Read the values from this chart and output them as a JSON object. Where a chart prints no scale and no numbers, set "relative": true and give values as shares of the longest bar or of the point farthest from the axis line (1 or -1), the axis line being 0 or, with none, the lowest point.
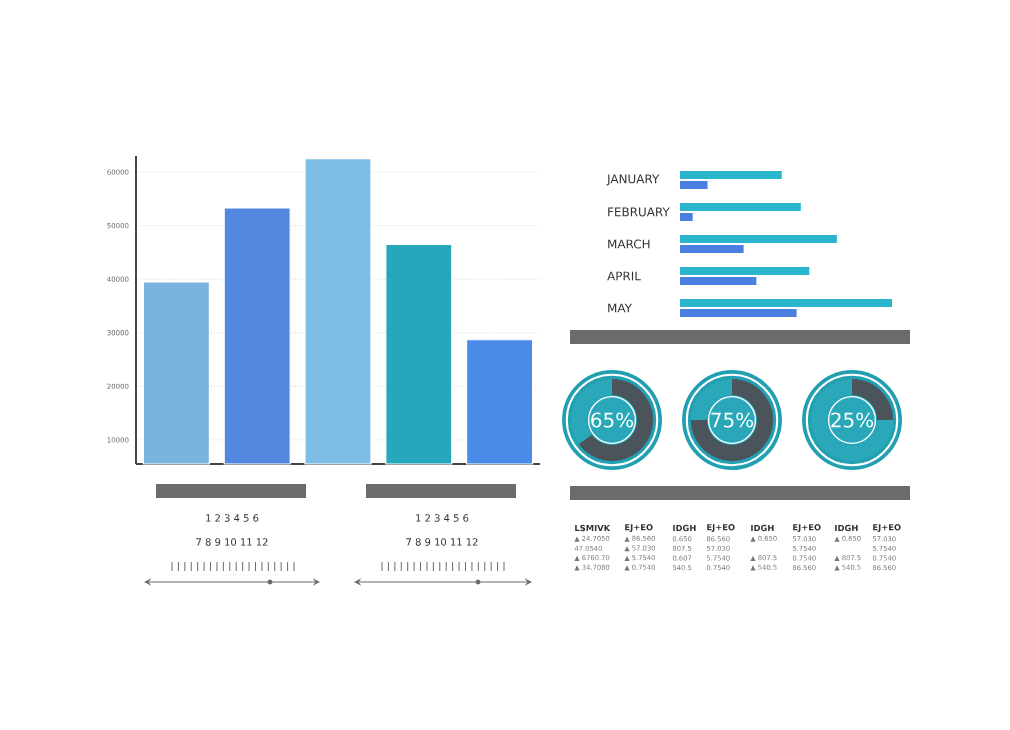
{
  "chart_data": [
    {
      "type": "bar",
      "categories": [
        null,
        null,
        null,
        null,
        null
      ],
      "values": [
        39500,
        53300,
        62500,
        46500,
        28700
      ],
      "colors": [
        "#7ab3dd",
        "#5388e0",
        "#7dbde6",
        "#27a7bb",
        "#4a8ae8"
      ],
      "ylim": [
        5500,
        63000
      ],
      "yticks": [
        10000,
        20000,
        30000,
        40000,
        50000,
        60000
      ],
      "grid": "y",
      "tick_labels": "y",
      "annotations": [
        "1 2 3 4 5 6",
        "7 8 9 10 11 12",
        "1 2 3 4 5 6",
        "7 8 9 10 11 12"
      ]
    },
    {
      "type": "bar",
      "orientation": "horizontal",
      "relative": true,
      "categories": [
        "JANUARY",
        "FEBRUARY",
        "MARCH",
        "APRIL",
        "MAY"
      ],
      "series": [
        {
          "color": "#29b6cc",
          "values": [
            0.48,
            0.57,
            0.74,
            0.61,
            1.0
          ]
        },
        {
          "color": "#4a7fe0",
          "values": [
            0.13,
            0.06,
            0.3,
            0.36,
            0.55
          ]
        }
      ]
    },
    {
      "type": "donut",
      "categories": [
        null,
        null
      ],
      "values": [
        65,
        35
      ],
      "colors": [
        "#4b545a",
        "#2aa7b8"
      ],
      "annotations": [
        "65%"
      ]
    },
    {
      "type": "donut",
      "categories": [
        null,
        null
      ],
      "values": [
        75,
        25
      ],
      "colors": [
        "#4b545a",
        "#2aa7b8"
      ],
      "annotations": [
        "75%"
      ]
    },
    {
      "type": "donut",
      "categories": [
        null,
        null
      ],
      "values": [
        25,
        75
      ],
      "colors": [
        "#4b545a",
        "#2aa7b8"
      ],
      "annotations": [
        "25%"
      ]
    },
    {
      "type": "other",
      "annotations": [
        "LSMIVK",
        "EJ+EO",
        "IDGH",
        "EJ+EO",
        "IDGH",
        "EJ+EO",
        "IDGH",
        "EJ+EO",
        "▲ 24.7050",
        "▲ 86.560",
        "0.650",
        "86.560",
        "▲ 0.650",
        "57.030",
        "▲ 0.650",
        "57.030",
        "47.0540",
        "▲ 57.030",
        "807.5",
        "57.030",
        "5.7540",
        "5.7540",
        "▲ 6760.70",
        "▲ 5.7540",
        "0.607",
        "5.7540",
        "▲ 807.5",
        "0.7540",
        "▲ 807.5",
        "0.7540",
        "▲ 34.7080",
        "▲ 0.7540",
        "540.5",
        "0.7540",
        "▲ 540.5",
        "86.560",
        "▲ 540.5",
        "86.560"
      ]
    }
  ]
}
